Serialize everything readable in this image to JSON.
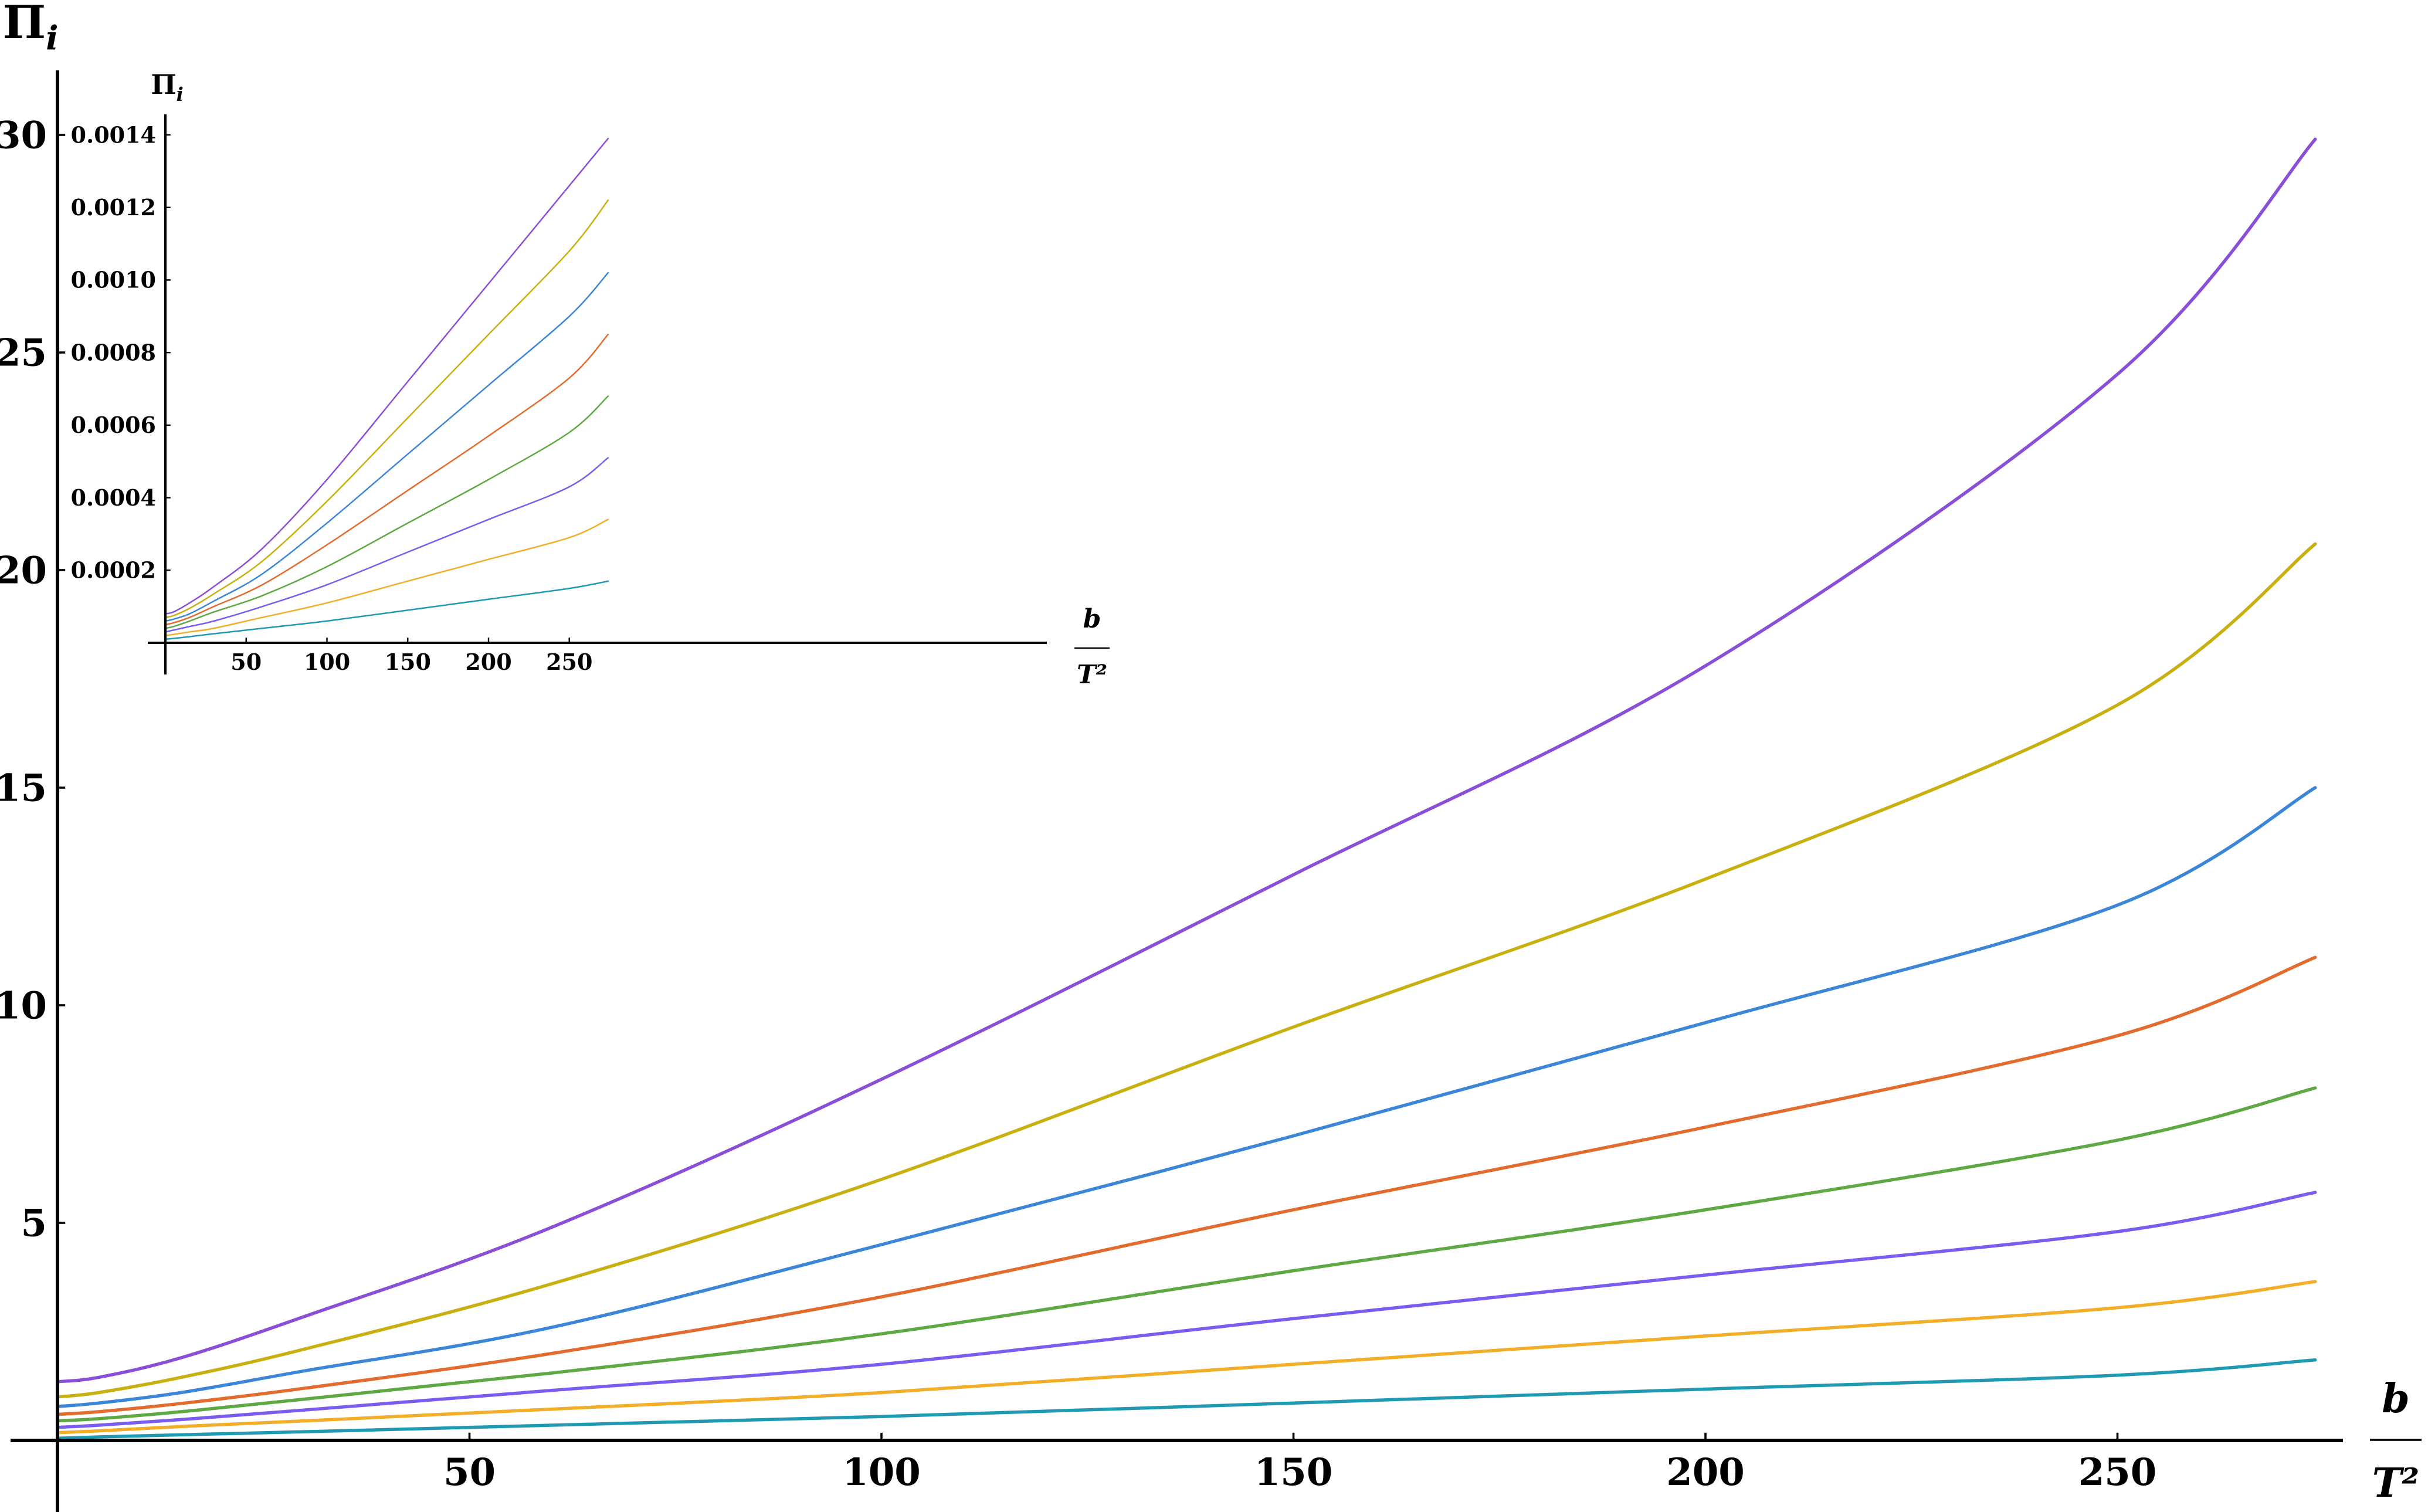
{
  "chart_data": [
    {
      "type": "line",
      "ylabel": "Πi",
      "xlabel": {
        "numerator": "b",
        "denominator": "T²"
      },
      "xlim": [
        0,
        280
      ],
      "ylim": [
        0,
        31
      ],
      "x_ticks": [
        50,
        100,
        150,
        200,
        250
      ],
      "y_ticks": [
        5,
        10,
        15,
        20,
        25,
        30
      ],
      "grid": false,
      "series": [
        {
          "color": "#8a4fd8",
          "x": [
            0,
            5,
            15,
            30,
            60,
            100,
            150,
            200,
            250,
            274
          ],
          "y": [
            1.35,
            1.45,
            1.9,
            2.85,
            4.9,
            8.3,
            13.0,
            17.8,
            24.5,
            29.9
          ]
        },
        {
          "color": "#c9b011",
          "x": [
            0,
            5,
            15,
            30,
            60,
            100,
            150,
            200,
            250,
            274
          ],
          "y": [
            1.0,
            1.1,
            1.45,
            2.1,
            3.6,
            6.0,
            9.5,
            12.9,
            16.9,
            20.6
          ]
        },
        {
          "color": "#3b86d8",
          "x": [
            0,
            5,
            15,
            30,
            60,
            100,
            150,
            200,
            250,
            274
          ],
          "y": [
            0.78,
            0.86,
            1.1,
            1.6,
            2.6,
            4.5,
            7.0,
            9.6,
            12.3,
            15.0
          ]
        },
        {
          "color": "#e36b2e",
          "x": [
            0,
            5,
            15,
            30,
            60,
            100,
            150,
            200,
            250,
            274
          ],
          "y": [
            0.6,
            0.66,
            0.85,
            1.2,
            2.0,
            3.3,
            5.3,
            7.2,
            9.3,
            11.1
          ]
        },
        {
          "color": "#5fa944",
          "x": [
            0,
            5,
            15,
            30,
            60,
            100,
            150,
            200,
            250,
            274
          ],
          "y": [
            0.45,
            0.5,
            0.66,
            0.95,
            1.55,
            2.45,
            3.9,
            5.3,
            6.9,
            8.1
          ]
        },
        {
          "color": "#7b5cf0",
          "x": [
            0,
            5,
            15,
            30,
            60,
            100,
            150,
            200,
            250,
            274
          ],
          "y": [
            0.3,
            0.35,
            0.48,
            0.7,
            1.15,
            1.75,
            2.8,
            3.8,
            4.8,
            5.7
          ]
        },
        {
          "color": "#f2ae26",
          "x": [
            0,
            5,
            15,
            30,
            60,
            100,
            150,
            200,
            250,
            274
          ],
          "y": [
            0.18,
            0.22,
            0.32,
            0.45,
            0.72,
            1.1,
            1.75,
            2.4,
            3.05,
            3.65
          ]
        },
        {
          "color": "#1f9ab2",
          "x": [
            0,
            5,
            15,
            30,
            60,
            100,
            150,
            200,
            250,
            274
          ],
          "y": [
            0.05,
            0.08,
            0.13,
            0.2,
            0.35,
            0.55,
            0.86,
            1.18,
            1.5,
            1.85
          ]
        }
      ]
    },
    {
      "type": "line",
      "ylabel": "Πi",
      "xlabel": {
        "numerator": "b",
        "denominator": "T²"
      },
      "xlim": [
        0,
        280
      ],
      "ylim": [
        0,
        0.0014
      ],
      "x_ticks": [
        50,
        100,
        150,
        200,
        250
      ],
      "y_ticks": [
        0.0002,
        0.0004,
        0.0006,
        0.0008,
        0.001,
        0.0012,
        0.0014
      ],
      "y_tick_labels": [
        "0.0002",
        "0.0004",
        "0.0006",
        "0.0008",
        "0.0010",
        "0.0012",
        "0.0014"
      ],
      "grid": false,
      "series": [
        {
          "color": "#8a4fd8",
          "x": [
            0,
            5,
            15,
            30,
            60,
            100,
            150,
            200,
            250,
            274
          ],
          "y": [
            8e-05,
            8.5e-05,
            0.00011,
            0.000155,
            0.00026,
            0.00045,
            0.00072,
            0.00099,
            0.00126,
            0.00139
          ]
        },
        {
          "color": "#c9b011",
          "x": [
            0,
            5,
            15,
            30,
            60,
            100,
            150,
            200,
            250,
            274
          ],
          "y": [
            7e-05,
            7.5e-05,
            9.5e-05,
            0.000135,
            0.000225,
            0.00039,
            0.00062,
            0.00085,
            0.00108,
            0.00122
          ]
        },
        {
          "color": "#3b86d8",
          "x": [
            0,
            5,
            15,
            30,
            60,
            100,
            150,
            200,
            250,
            274
          ],
          "y": [
            6e-05,
            6.5e-05,
            8e-05,
            0.000115,
            0.00019,
            0.00033,
            0.00052,
            0.00071,
            0.0009,
            0.00102
          ]
        },
        {
          "color": "#e36b2e",
          "x": [
            0,
            5,
            15,
            30,
            60,
            100,
            150,
            200,
            250,
            274
          ],
          "y": [
            5e-05,
            5.5e-05,
            7e-05,
            0.0001,
            0.00016,
            0.00027,
            0.00042,
            0.00057,
            0.00073,
            0.00085
          ]
        },
        {
          "color": "#5fa944",
          "x": [
            0,
            5,
            15,
            30,
            60,
            100,
            150,
            200,
            250,
            274
          ],
          "y": [
            4e-05,
            4.5e-05,
            6e-05,
            8.5e-05,
            0.00013,
            0.00021,
            0.00033,
            0.00045,
            0.00058,
            0.00068
          ]
        },
        {
          "color": "#7b5cf0",
          "x": [
            0,
            5,
            15,
            30,
            60,
            100,
            150,
            200,
            250,
            274
          ],
          "y": [
            3e-05,
            3.5e-05,
            4.5e-05,
            6e-05,
            0.0001,
            0.00016,
            0.00025,
            0.00034,
            0.00043,
            0.00051
          ]
        },
        {
          "color": "#f2ae26",
          "x": [
            0,
            5,
            15,
            30,
            60,
            100,
            150,
            200,
            250,
            274
          ],
          "y": [
            2e-05,
            2.3e-05,
            3e-05,
            4e-05,
            7e-05,
            0.00011,
            0.00017,
            0.00023,
            0.00029,
            0.00034
          ]
        },
        {
          "color": "#1f9ab2",
          "x": [
            0,
            5,
            15,
            30,
            60,
            100,
            150,
            200,
            250,
            274
          ],
          "y": [
            1e-05,
            1.2e-05,
            1.7e-05,
            2.5e-05,
            4e-05,
            6e-05,
            9e-05,
            0.00012,
            0.00015,
            0.00017
          ]
        }
      ]
    }
  ]
}
